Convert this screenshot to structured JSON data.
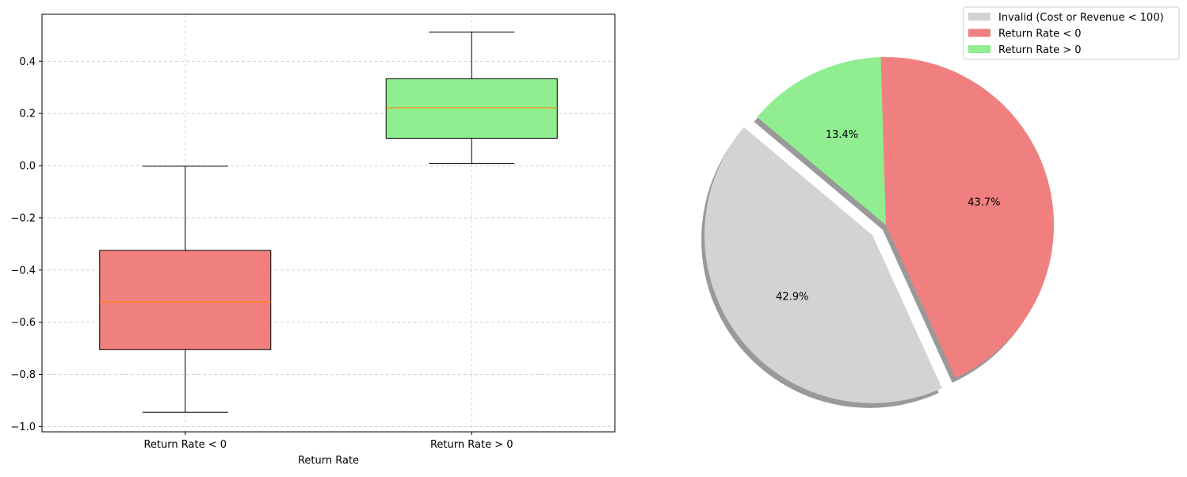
{
  "chart_data": [
    {
      "type": "box",
      "xlabel": "Return Rate",
      "ylabel": "",
      "ylim": [
        -1.02,
        0.58
      ],
      "yticks": [
        -1.0,
        -0.8,
        -0.6,
        -0.4,
        -0.2,
        0.0,
        0.2,
        0.4
      ],
      "ytick_labels": [
        "−1.0",
        "−0.8",
        "−0.6",
        "−0.4",
        "−0.2",
        "0.0",
        "0.2",
        "0.4"
      ],
      "grid": true,
      "categories": [
        "Return Rate < 0",
        "Return Rate > 0"
      ],
      "boxes": [
        {
          "label": "Return Rate < 0",
          "whisker_low": -0.945,
          "q1": -0.705,
          "median": -0.522,
          "q3": -0.325,
          "whisker_high": -0.002,
          "color": "#f08080"
        },
        {
          "label": "Return Rate > 0",
          "whisker_low": 0.008,
          "q1": 0.105,
          "median": 0.222,
          "q3": 0.333,
          "whisker_high": 0.512,
          "color": "#90ee90"
        }
      ],
      "median_color": "#ff7f0e"
    },
    {
      "type": "pie",
      "slices": [
        {
          "label": "Invalid (Cost or Revenue < 100)",
          "value": 42.9,
          "pct_label": "42.9%",
          "color": "#d3d3d3",
          "explode": true
        },
        {
          "label": "Return Rate < 0",
          "value": 43.7,
          "pct_label": "43.7%",
          "color": "#f08080",
          "explode": false
        },
        {
          "label": "Return Rate > 0",
          "value": 13.4,
          "pct_label": "13.4%",
          "color": "#90ee90",
          "explode": false
        }
      ],
      "shadow": true,
      "legend_placement": "top-right"
    }
  ]
}
